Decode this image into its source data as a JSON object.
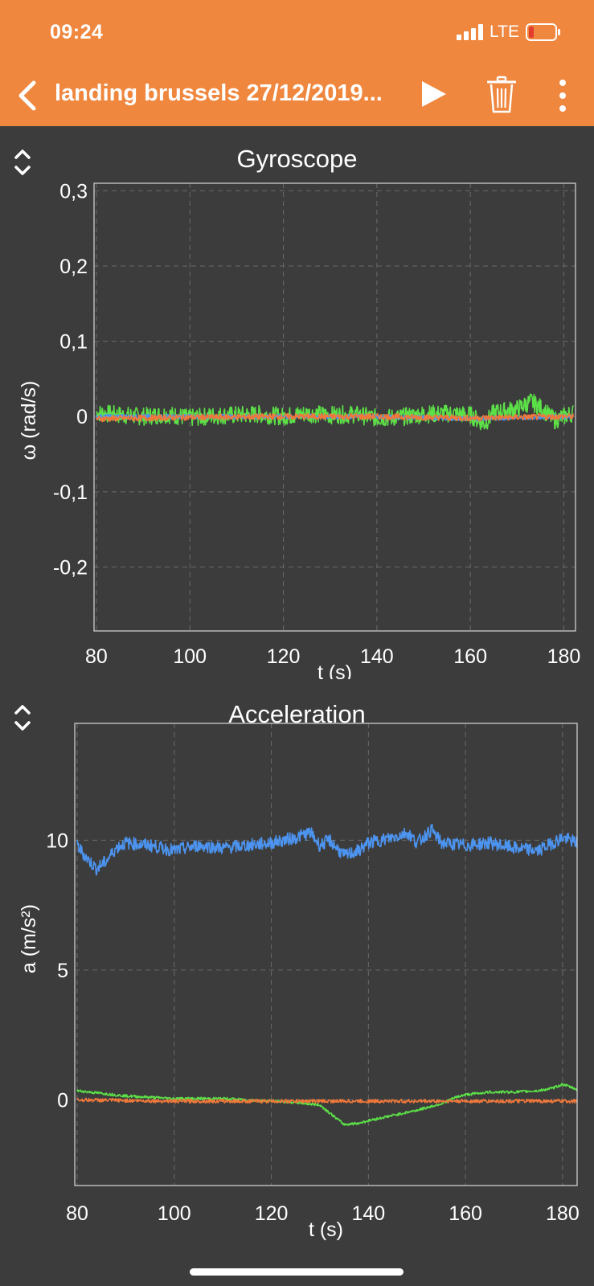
{
  "status_bar": {
    "time": "09:24",
    "network": "LTE"
  },
  "nav": {
    "title": "landing brussels 27/12/2019..."
  },
  "colors": {
    "header": "#ef873f",
    "background": "#3c3c3c",
    "series_x": "#4c94f0",
    "series_y": "#5ce048",
    "series_z": "#f0783a"
  },
  "icons": [
    "back-chevron-icon",
    "play-icon",
    "trash-icon",
    "more-vert-icon",
    "expand-collapse-icon"
  ],
  "chart_data": [
    {
      "type": "line",
      "title": "Gyroscope",
      "xlabel": "t (s)",
      "ylabel": "ω (rad/s)",
      "xlim": [
        79.5,
        182.5
      ],
      "ylim": [
        -0.285,
        0.31
      ],
      "x_ticks": [
        80,
        100,
        120,
        140,
        160,
        180
      ],
      "x_tick_labels": [
        "80",
        "100",
        "120",
        "140",
        "160",
        "180"
      ],
      "y_ticks": [
        0.3,
        0.2,
        0.1,
        0,
        -0.1,
        -0.2
      ],
      "y_tick_labels": [
        "0,3",
        "0,2",
        "0,1",
        "0",
        "-0,1",
        "-0,2"
      ],
      "grid": true,
      "series": [
        {
          "color": "#5ce048",
          "x": [
            80,
            85,
            90,
            95,
            100,
            105,
            110,
            115,
            120,
            125,
            130,
            135,
            140,
            145,
            150,
            155,
            160,
            163,
            165,
            170,
            173,
            175,
            178,
            182
          ],
          "y": [
            0.005,
            0.002,
            0,
            0.003,
            -0.002,
            0.001,
            0.002,
            0.003,
            0,
            0.004,
            0.002,
            0.003,
            -0.002,
            -0.001,
            0.003,
            0.004,
            0.002,
            -0.01,
            0.005,
            0.01,
            0.02,
            0.012,
            -0.005,
            0.005
          ],
          "noise": 0.012
        },
        {
          "color": "#4c94f0",
          "x": [
            80,
            100,
            120,
            140,
            160,
            180,
            182
          ],
          "y": [
            0,
            0,
            0,
            0,
            -0.003,
            0,
            0
          ],
          "noise": 0.003
        },
        {
          "color": "#f0783a",
          "x": [
            80,
            100,
            120,
            140,
            160,
            180,
            182
          ],
          "y": [
            -0.003,
            -0.001,
            0,
            0,
            -0.002,
            0,
            0
          ],
          "noise": 0.004
        }
      ]
    },
    {
      "type": "line",
      "title": "Acceleration",
      "xlabel": "t (s)",
      "ylabel": "a (m/s²)",
      "xlim": [
        79.5,
        183
      ],
      "ylim": [
        -3.3,
        14.5
      ],
      "x_ticks": [
        80,
        100,
        120,
        140,
        160,
        180
      ],
      "x_tick_labels": [
        "80",
        "100",
        "120",
        "140",
        "160",
        "180"
      ],
      "y_ticks": [
        10,
        5,
        0
      ],
      "y_tick_labels": [
        "10",
        "5",
        "0"
      ],
      "grid": true,
      "series": [
        {
          "color": "#4c94f0",
          "x": [
            80,
            82,
            84,
            86,
            88,
            90,
            95,
            100,
            105,
            110,
            115,
            120,
            125,
            128,
            130,
            132,
            135,
            138,
            140,
            145,
            148,
            150,
            153,
            155,
            160,
            165,
            170,
            175,
            180,
            183
          ],
          "y": [
            9.8,
            9.3,
            8.9,
            9.2,
            9.7,
            9.9,
            9.8,
            9.6,
            9.8,
            9.7,
            9.8,
            9.9,
            10.1,
            10.3,
            9.8,
            10.0,
            9.4,
            9.6,
            9.9,
            10.1,
            10.3,
            9.9,
            10.4,
            9.9,
            9.8,
            9.9,
            9.7,
            9.6,
            10.1,
            9.9
          ],
          "noise": 0.25
        },
        {
          "color": "#5ce048",
          "x": [
            80,
            85,
            90,
            95,
            100,
            110,
            120,
            125,
            130,
            132,
            135,
            138,
            140,
            145,
            150,
            155,
            158,
            160,
            165,
            170,
            175,
            178,
            180,
            183
          ],
          "y": [
            0.35,
            0.25,
            0.15,
            0.1,
            0.05,
            0.05,
            -0.05,
            -0.1,
            -0.2,
            -0.5,
            -0.95,
            -0.9,
            -0.8,
            -0.6,
            -0.4,
            -0.15,
            0.1,
            0.2,
            0.3,
            0.3,
            0.35,
            0.45,
            0.6,
            0.4
          ],
          "noise": 0.05
        },
        {
          "color": "#f0783a",
          "x": [
            80,
            100,
            120,
            140,
            160,
            180,
            183
          ],
          "y": [
            0,
            -0.05,
            -0.05,
            -0.05,
            -0.05,
            -0.05,
            -0.05
          ],
          "noise": 0.07
        }
      ]
    }
  ]
}
